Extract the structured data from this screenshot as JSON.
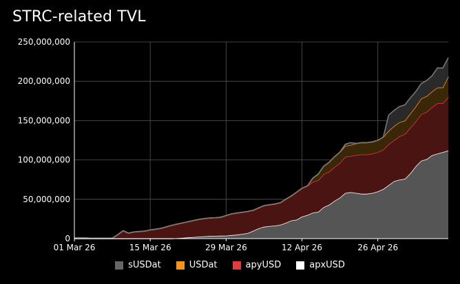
{
  "chart_data": {
    "type": "area",
    "title": "STRC-related TVL",
    "xlabel": "",
    "ylabel": "",
    "stacked": true,
    "ylim": [
      0,
      250000000
    ],
    "yticks": [
      0,
      50000000,
      100000000,
      150000000,
      200000000,
      250000000
    ],
    "ytick_labels": [
      "0",
      "50,000,000",
      "100,000,000",
      "150,000,000",
      "200,000,000",
      "250,000,000"
    ],
    "xlim": [
      "2026-03-01",
      "2026-05-09"
    ],
    "xticks": [
      "2026-03-01",
      "2026-03-15",
      "2026-03-29",
      "2026-04-12",
      "2026-04-26"
    ],
    "xtick_labels": [
      "01 Mar 26",
      "15 Mar 26",
      "29 Mar 26",
      "12 Apr 26",
      "26 Apr 26"
    ],
    "grid": true,
    "legend_position": "bottom",
    "x": [
      "2026-03-01",
      "2026-03-02",
      "2026-03-03",
      "2026-03-04",
      "2026-03-05",
      "2026-03-06",
      "2026-03-07",
      "2026-03-08",
      "2026-03-09",
      "2026-03-10",
      "2026-03-11",
      "2026-03-12",
      "2026-03-13",
      "2026-03-14",
      "2026-03-15",
      "2026-03-16",
      "2026-03-17",
      "2026-03-18",
      "2026-03-19",
      "2026-03-20",
      "2026-03-21",
      "2026-03-22",
      "2026-03-23",
      "2026-03-24",
      "2026-03-25",
      "2026-03-26",
      "2026-03-27",
      "2026-03-28",
      "2026-03-29",
      "2026-03-30",
      "2026-03-31",
      "2026-04-01",
      "2026-04-02",
      "2026-04-03",
      "2026-04-04",
      "2026-04-05",
      "2026-04-06",
      "2026-04-07",
      "2026-04-08",
      "2026-04-09",
      "2026-04-10",
      "2026-04-11",
      "2026-04-12",
      "2026-04-13",
      "2026-04-14",
      "2026-04-15",
      "2026-04-16",
      "2026-04-17",
      "2026-04-18",
      "2026-04-19",
      "2026-04-20",
      "2026-04-21",
      "2026-04-22",
      "2026-04-23",
      "2026-04-24",
      "2026-04-25",
      "2026-04-26",
      "2026-04-27",
      "2026-04-28",
      "2026-04-29",
      "2026-04-30",
      "2026-05-01",
      "2026-05-02",
      "2026-05-03",
      "2026-05-04",
      "2026-05-05",
      "2026-05-06",
      "2026-05-07",
      "2026-05-08",
      "2026-05-09"
    ],
    "series": [
      {
        "name": "apxUSD",
        "color": "#ffffff",
        "fill": "#555555",
        "values": [
          0,
          0,
          0,
          0,
          0,
          0,
          0,
          0,
          0,
          0,
          0,
          0,
          0,
          0,
          0,
          0,
          0,
          0,
          0,
          500000,
          1000000,
          1500000,
          2000000,
          2500000,
          3000000,
          3200000,
          3500000,
          3700000,
          3800000,
          4500000,
          5000000,
          6000000,
          7000000,
          10000000,
          13000000,
          15000000,
          16000000,
          16500000,
          17500000,
          20000000,
          23000000,
          24000000,
          28000000,
          30000000,
          33000000,
          34000000,
          40000000,
          43000000,
          48000000,
          52000000,
          58000000,
          59000000,
          58000000,
          57000000,
          57000000,
          58000000,
          60000000,
          63000000,
          68000000,
          73000000,
          75000000,
          76000000,
          83000000,
          92000000,
          99000000,
          101000000,
          106000000,
          108000000,
          110000000,
          112000000
        ]
      },
      {
        "name": "apyUSD",
        "color": "#e03c3c",
        "fill": "#4a1412",
        "values": [
          1000000,
          1000000,
          800000,
          600000,
          500000,
          500000,
          500000,
          500000,
          5000000,
          10000000,
          7000000,
          8500000,
          9000000,
          9500000,
          11000000,
          12000000,
          13000000,
          15000000,
          17000000,
          18000000,
          19000000,
          20000000,
          21000000,
          22000000,
          22500000,
          23000000,
          23000000,
          23500000,
          25500000,
          27000000,
          27500000,
          27500000,
          27500000,
          26000000,
          26000000,
          27000000,
          27000000,
          27500000,
          28000000,
          30000000,
          31000000,
          35000000,
          36000000,
          37000000,
          39000000,
          40000000,
          42000000,
          42000000,
          43000000,
          44000000,
          46000000,
          46000000,
          48000000,
          50000000,
          50000000,
          50000000,
          50000000,
          50000000,
          52000000,
          52000000,
          55000000,
          57000000,
          58000000,
          57000000,
          59000000,
          60000000,
          61000000,
          64000000,
          62000000,
          68000000
        ]
      },
      {
        "name": "USDat",
        "color": "#f7931a",
        "fill": "#3a2708",
        "values": [
          0,
          0,
          0,
          0,
          0,
          0,
          0,
          0,
          0,
          0,
          0,
          0,
          0,
          0,
          0,
          0,
          0,
          0,
          0,
          0,
          0,
          0,
          0,
          0,
          0,
          0,
          0,
          0,
          0,
          0,
          0,
          0,
          0,
          0,
          0,
          0,
          0,
          0,
          0,
          0,
          0,
          0,
          0,
          0,
          5000000,
          8000000,
          10000000,
          12000000,
          13000000,
          14000000,
          14000000,
          14000000,
          15000000,
          15000000,
          15000000,
          15000000,
          15000000,
          16000000,
          17000000,
          18000000,
          18000000,
          17000000,
          18000000,
          19000000,
          20000000,
          20000000,
          20000000,
          20000000,
          20000000,
          26000000
        ]
      },
      {
        "name": "sUSDat",
        "color": "#777777",
        "fill": "#2a2a2a",
        "values": [
          0,
          0,
          0,
          0,
          0,
          0,
          0,
          0,
          0,
          0,
          0,
          0,
          0,
          0,
          0,
          0,
          0,
          0,
          0,
          0,
          0,
          0,
          0,
          0,
          0,
          0,
          0,
          0,
          0,
          0,
          0,
          0,
          0,
          0,
          0,
          0,
          0,
          0,
          0,
          0,
          0,
          0,
          0,
          0,
          0,
          0,
          0,
          0,
          0,
          0,
          2000000,
          3000000,
          0,
          0,
          0,
          0,
          0,
          0,
          20000000,
          20000000,
          20000000,
          20000000,
          20000000,
          19000000,
          19000000,
          20000000,
          20000000,
          25000000,
          25000000,
          24000000
        ]
      }
    ],
    "legend": [
      {
        "name": "sUSDat",
        "color": "#666666"
      },
      {
        "name": "USDat",
        "color": "#f7931a"
      },
      {
        "name": "apyUSD",
        "color": "#e03c3c"
      },
      {
        "name": "apxUSD",
        "color": "#ffffff"
      }
    ]
  }
}
